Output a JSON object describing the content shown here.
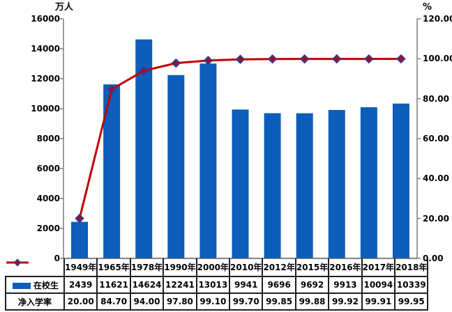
{
  "chart_data": {
    "type": "combo-bar-line",
    "categories": [
      "1949年",
      "1965年",
      "1978年",
      "1990年",
      "2000年",
      "2010年",
      "2012年",
      "2015年",
      "2016年",
      "2017年",
      "2018年"
    ],
    "series": [
      {
        "name": "在校生",
        "chart": "bar",
        "axis": "left",
        "color": "#0C5EBA",
        "values": [
          2439,
          11621,
          14624,
          12241,
          13013,
          9941,
          9696,
          9692,
          9913,
          10094,
          10339
        ]
      },
      {
        "name": "净入学率",
        "chart": "line",
        "axis": "right",
        "color": "#C00000",
        "marker": "diamond",
        "marker_fill": "#A01018",
        "marker_stroke": "#2D3C9E",
        "values": [
          20.0,
          84.7,
          94.0,
          97.8,
          99.1,
          99.7,
          99.85,
          99.88,
          99.92,
          99.91,
          99.95
        ],
        "values_display": [
          "20.00",
          "84.70",
          "94.00",
          "97.80",
          "99.10",
          "99.70",
          "99.85",
          "99.88",
          "99.92",
          "99.91",
          "99.95"
        ]
      }
    ],
    "left_axis": {
      "title": "万人",
      "min": 0,
      "max": 16000,
      "step": 2000,
      "tick_labels": [
        "0",
        "2000",
        "4000",
        "6000",
        "8000",
        "10000",
        "12000",
        "14000",
        "16000"
      ]
    },
    "right_axis": {
      "title": "%",
      "min": 0,
      "max": 120,
      "step": 20,
      "tick_labels": [
        "0.00",
        "20.00",
        "40.00",
        "60.00",
        "80.00",
        "100.00",
        "120.00"
      ]
    },
    "grid": false,
    "plot_background": "#FFFFFF",
    "axis_line_color": "#7F7F7F",
    "baseline_color": "#595959",
    "table_border_color": "#1F1F1F",
    "legend_position": "table-rows-left"
  }
}
